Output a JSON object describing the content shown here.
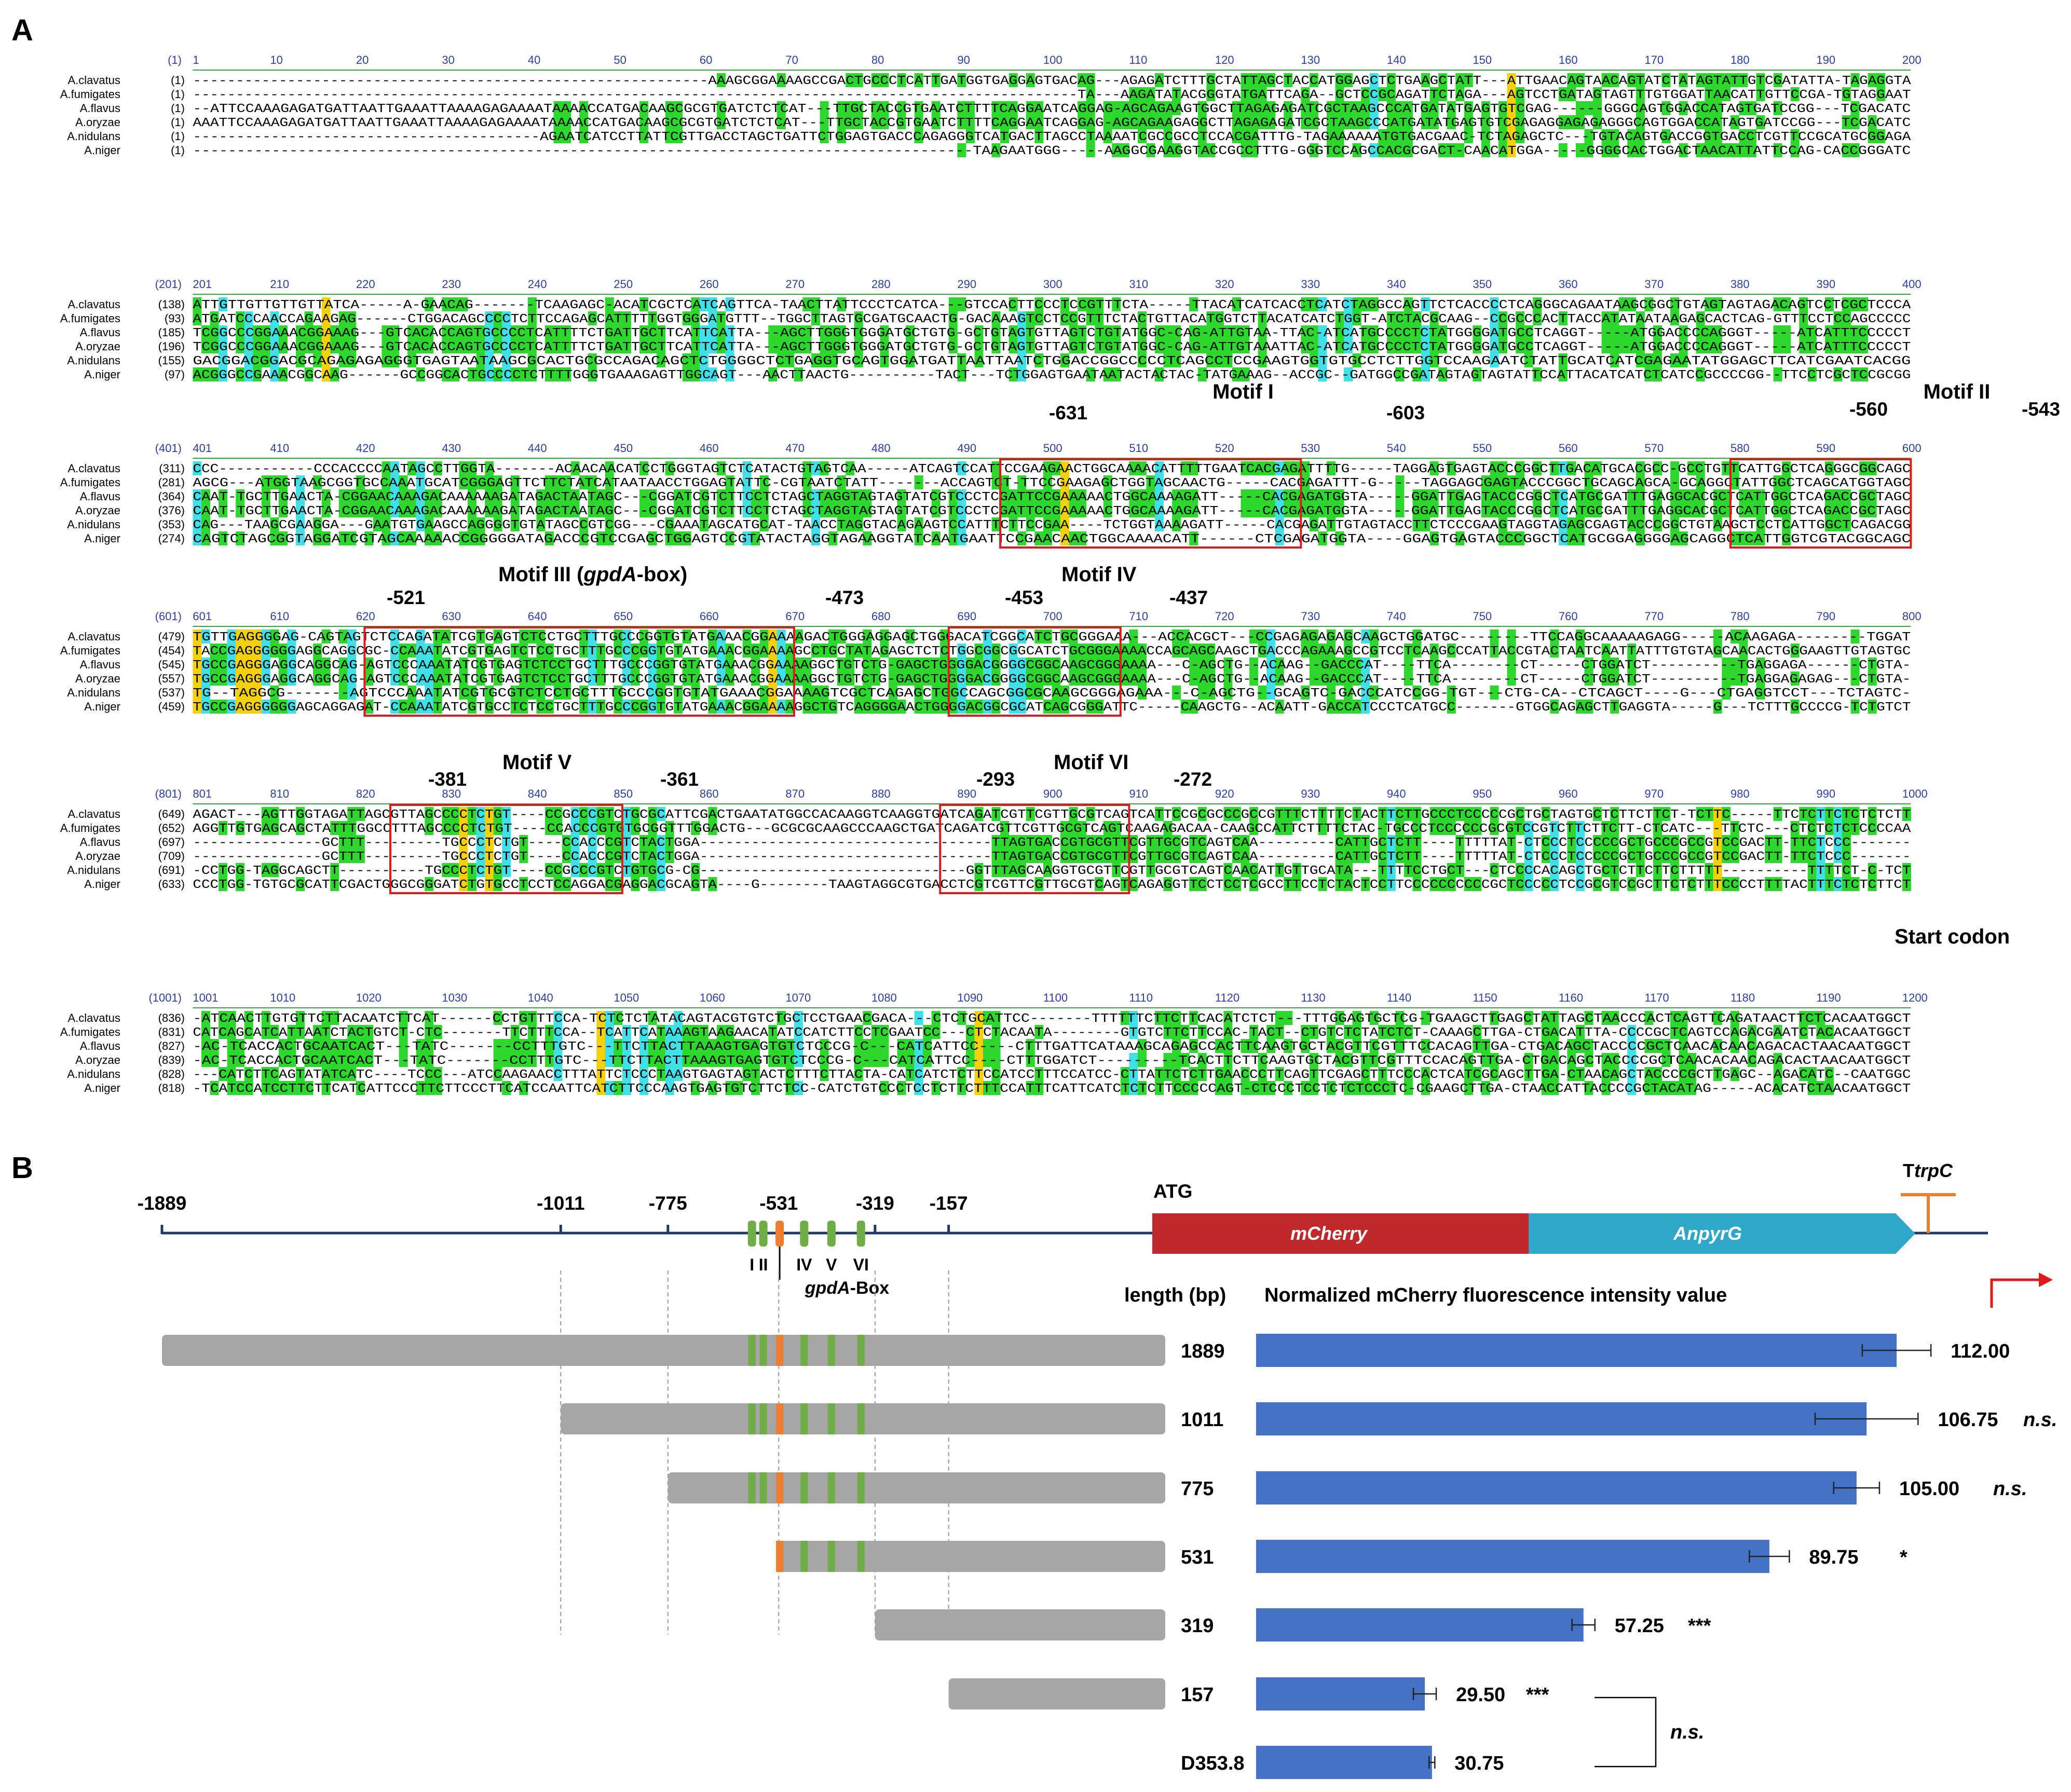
{
  "panel_a": {
    "label": "A",
    "species": [
      "A.clavatus",
      "A.fumigates",
      "A.flavus",
      "A.oryzae",
      "A.nidulans",
      "A.niger"
    ],
    "blocks": [
      {
        "pos": "(1)",
        "starts": [
          "(1)",
          "(1)",
          "(1)",
          "(1)",
          "(1)",
          "(1)"
        ],
        "ticks": [
          "1",
          "10",
          "20",
          "30",
          "40",
          "50",
          "60",
          "70",
          "80",
          "90",
          "100",
          "110",
          "120",
          "130",
          "140",
          "150",
          "160",
          "170",
          "180",
          "190",
          "200"
        ],
        "seqs": [
          "------------------------------------------------------------AAAGCGGAAAAGCCGACTGCCCTCATTGATGGTGAGGAGTGACAG---AGAGATCTTTGCTATTAGCTACCATGGAGCTCTGAAGCTATT---ATTGAACAGTAACAGTATCTATAGTATTGTCGATATTA-TAGAGGTATC",
          "-------------------------------------------------------------------------------------------------------TA---AAGATATACGGGTATGATTCAGA--GCTCCGCAGATTCTAGA---AGTCCTGATAGTAGTTTGTGGATTAACATTGTTCCGA-TGTAGGAATC",
          "--ATTCCAAAGAGATGATTAATTGAAATTAAAAGAGAAAATAAAACCATGACAAGCGCGTGATCTCTCAT---TTGCTACCGTGAATCTTTTCAGGAATCAGGAG-AGCAGAAGTGGCTTAGAGAGATCGCTAAGCCCATGATATGAGTGTCGAG------GGGCAGTGGACCATAGTGATCCGG---TCGACATC",
          "AAATTCCAAAGAGATGATTAATTGAAATTAAAAGAGAAAATAAAACCATGACAAGCGCGTGATCTCTCAT---TTGCTACCGTGAATCTTTTCAGGAATCAGGAG-AGCAGAAGAGGCTTAGAGAGATCGCTAAGCCCATGATATGAGTGTCGAGAGGAGAGAGGGCAGTGGACCATAGTGATCCGG---TCGACATC",
          "----------------------------------------AGAATCATCCTTATTCGTTGACCTAGCTGATTCTGGAGTGACCCAGAGGGTCATGACTTAGCCTAAAATCGCCGCCTCCACGATTTG-TAGAAAAAATGTGACGAAC-TCTAGAGCTC---TGTACAGTGACCGGTGACCTCGTTCCGCATGCGGAGA",
          "-----------------------------------------------------------------------------------------TAAGAATGGG-----AAGGCGAAGGTACCGCCTTTG-GGGTCCAGCCACGCGACT-CAACATGGA-----GGGGCACTGGACTAACATTATTCCAG-CACCGGGATC"
        ]
      },
      {
        "pos": "(201)",
        "starts": [
          "(138)",
          "(93)",
          "(185)",
          "(196)",
          "(155)",
          "(97)"
        ],
        "ticks": [
          "201",
          "210",
          "220",
          "230",
          "240",
          "250",
          "260",
          "270",
          "280",
          "290",
          "300",
          "310",
          "320",
          "330",
          "340",
          "350",
          "360",
          "370",
          "380",
          "390",
          "400"
        ],
        "seqs": [
          "ATTGTTGTTGTTGTTATCA-----A-GAACAG-------TCAAGAGC-ACATCGCTCATCAGTTCA-TAACTTATTCCCTCATCA---GTCCACTTCCCTCCGTTTCTA-----TTACATCATCACCTCATCTAGGCCAGTTCTCACCCCTCAGGGCAGAATAAGCGGCTGTAGTAGTAGACAGTCCTCGCTCCCA",
          "ATGATCCCAACCAGAAGAG------CTGGACAGCCCCTCTTCCAGAGCATTTTTGGTGGGATGTTT--TGGCTTAGTGCGATGCAACTG-GACAAAGTCCTCCGTTTCTACTGTTACATGGTCTTACATCATCTGGT-ATCTACGCAAG--CCGCCCACTTACCATATAATAAGAGCACTCAG-GTTTCCTCCAGCCCCCCA",
          "TCGGCCCGGAAACGGAAAG---GTCACACCAGTGCCCCTCATTTTCTGATTGCTTCATTCATTA---AGCTTGGGTGGGATGCTGTG-GCTGTAGTGTTAGTCTGTATGGC-CAG-ATTGTAA-TTAC-ATCATGCCCCTCTATGGGGATGCCTCAGGT-----ATGGACCCCAGGGT-----ATCATTTCCCCCT",
          "TCGGCCCGGAAACGGAAAG---GTCACACCAGTGCCCCTCATTTTCTGATTGCTTCATTCATTA---AGCTTGGGTGGGATGCTGTG-GCTGTAGTGTTAGTCTGTATGGC-CAG-ATTGTAAATTAC-ATCATGCCCCTCTATGGGGATGCCTCAGGT-----ATGGACCCCAGGGT-----ATCATTTCCCCCT",
          "GACGGACGGACGCAGAGAGAGGGTGAGTAATAAGCGCACTGCGCCAGACAGCTCTGGGGCTCTGAGGTGCAGTGGATGATTAATTAATCTGGACCGGCCCCCTCAGCCTCCGAAGTGGTGTGCCTCTTGGTCCAAGAATCTATTGCATCATCGAGAATATGGAGCTTCATCGAATCACGG",
          "ACGGGCCGAAACGGCAAG------GCCGGCACTGCCCCTCTTTTGGGTGAAAGAGTTGGCAGT---AACTTAACTG----------TACT---TCTGGAGTGAATAATACTACTAC-TATGAAAG--ACCGC--GATGGCCGATAGTAGTAGTATTCCATTACATCATCTCATCCGCCCCGG--TTCCTCGCTCCGCGG"
        ]
      },
      {
        "pos": "(401)",
        "starts": [
          "(311)",
          "(281)",
          "(364)",
          "(376)",
          "(353)",
          "(274)"
        ],
        "ticks": [
          "401",
          "410",
          "420",
          "430",
          "440",
          "450",
          "460",
          "470",
          "480",
          "490",
          "500",
          "510",
          "520",
          "530",
          "540",
          "550",
          "560",
          "570",
          "580",
          "590",
          "600"
        ],
        "seqs": [
          "CCC-----------CCCACCCCAATAGCCTTGGTA-------ACAACAACATCCTGGGTAGTCTCATACTGTAGTCAA-----ATCAGTCCATTCCGAAGAACTGGCAAAACATTTTTGAATCACGAGATTTTG-----TAGGAGTGAGTACCCGGCTTGACATGCACGCC-GCCTGTTCATTGGCTCAGGGCGGCAGC",
          "AGCG---ATGGTAAGCGGTGCCAAATGCATCGGGAGTTCTTCTATCATAATAACCTGGAGTATTC-CGTAATCTATT-------ACCAGTCT-TTCCGAAGAGCTGGTAGCAACTG-----CACGAGATTT-G-----TAGGAGCGAGTACCCGGCTGCAGCAGCA-GCAGGCTATTGGCTCAGCATGGTAGC",
          "CAAT-TGCTTGAACTA-CGGAACAAAGACAAAAAAGATAGACTAATAGC---CGGATCGTCTTCCTCTAGCTAGGTAGTAGTATCGTCCCTCGATTCCGAAAAACTGGCAAAAGATT-----CACGAGATGGTA-----GGATTGAGTACCCGGCTCATGCGATTTGAGGCACGCTCATTGGCTCAGACCGCTAGC",
          "CAAT-TGCTTGAACTA-CGGAACAAAGACAAAAAAGATAGACTAATAGC---CGGATCGTCTTCCTCTAGCTAGGTAGTAGTATCGTCCCTCGATTCCGAAAAACTGGCAAAAGATT-----CACGAGATGGTA-----GGATTGAGTACCCGGCTCATGCGATTTGAGGCACGCTCATTGGCTCAGACCGCTAGC",
          "CAG---TAAGCGAAGGA---GAATGTGAAGCCAGGGGTGTATAGCCGTCGG---CGAAATAGCATGCAT-TAACCTAGGTACAGAAGTCCATTTCTTCCGAA----TCTGGTAAAAGATT-----CACGAGATTGTAGTACCTTCTCCCGAAGTAGGTAGAGCGAGTACCCGGCTGTAAGCTCCTCATTGGCTCAGACGGCTAGC",
          "CAGTCTAGCGGTAGGATCGTAGCAAAAACCGGGGGATAGACCCGTCCGAGCTGGAGTCCGTATACTAGGTAGAAGGTATCAATGAATTCCGAACAACTGGCAAAACATT------CTCGAGATGGTA----GGAGTGAGTACCCGGCTCATGCGGAGGGGAGCAGGCTCATTGGTCGTACGGCAGC"
        ]
      },
      {
        "pos": "(601)",
        "starts": [
          "(479)",
          "(454)",
          "(545)",
          "(557)",
          "(537)",
          "(459)"
        ],
        "ticks": [
          "601",
          "610",
          "620",
          "630",
          "640",
          "650",
          "660",
          "670",
          "680",
          "690",
          "700",
          "710",
          "720",
          "730",
          "740",
          "750",
          "760",
          "770",
          "780",
          "790",
          "800"
        ],
        "seqs": [
          "TGTTGAGGGGAG-CAGTAGTCTCCAGATATCGTGAGTCTCCTGCTTTGCCCGGTGTATGAAACGGAAAAGACTGGGAGGAGCTGGGACATCGGCATCTGCGGGAAA---ACCACGCT---CCGAGAGAGAGCAAGCTGGATGC--------TTCCAGGCAAAAAGAGG-----ACAAGAGA--------TGGAT",
          "TACCGAGGGGGGAGGCAGGCGC-CCAAATATCGTGAGTCTCCTGCTTTGCCCGGTGTATGAAACGGAAAAGCCTGCTATAGAGCTCTCTGGCGGCGGCATCTGCGGGAAAACCAGCAGCAAGCTGACCCAGAAAGCCGTCCTCAAGCCCATTACCGTACTAATCAATTATTTGTGTAGCAACACTGGGAAGTTGTAGTGCAT",
          "TGCCGAGGGAGGCAGGCAG-AGTCCCAAATATCGTGAGTCTCCTGCTTTGCCCGGTGTATGAAACGGAAAAGGCTGTCTG-GAGCTGGGGACGGGGCGGCAAGCGGGAAAA---C-AGCTG--ACAAG--GACCCAT----TTCA--------CT-----CTGGATCT----------TGAGGAGA------CTGTA-",
          "TGCCGAGGGAGGCAGGCAG-AGTCCCAAATATCGTGAGTCTCCTGCTTTGCCCGGTGTATGAAACGGAAAAGGCTGTCTG-GAGCTGGGGACGGGGCGGCAAGCGGGAAAA---C-AGCTG--ACAAG--GACCCAT----TTCA--------CT-----CTGGATCT----------TGAGGAGAGAG---CTGTA-",
          "TG--TAGGCG-------AGTCCCAAATATCGTGCGTCTCCTGCTTTGCCCGGTGTATGAAACGGAAAAGTCGCTCAGAGCTGGCCAGCGGCGCAAGCGGGAGAAA---C-AGCTG--GCAGTC-GACCCATCCGG-TGT---CTG-CA--CTCAGCT----G---CTGAGGTCCT---TCTAGTC-",
          "TGCCGAGGGGGGAGCAGGAGAT-CCAAATATCGTGCCTCTCCTGCTTTGCCCGGTGTATGAAACGGAAAAGGCTGTCAGGGGAACTGGGGACGGCGCATCAGCGGGATTC-----CAAGCTG--ACAATT-GACCATCCCTCATGCC-------GTGGCAGAGCTTGAGGTA-----G---TCTTTGCCCCG-TCTGTCT"
        ]
      },
      {
        "pos": "(801)",
        "starts": [
          "(649)",
          "(652)",
          "(697)",
          "(709)",
          "(691)",
          "(633)"
        ],
        "ticks": [
          "801",
          "810",
          "820",
          "830",
          "840",
          "850",
          "860",
          "870",
          "880",
          "890",
          "900",
          "910",
          "920",
          "930",
          "940",
          "950",
          "960",
          "970",
          "980",
          "990",
          "1000"
        ],
        "seqs": [
          "AGACT---AGTTGGTAGATTAGCGTTAGCCCCTCTGT----CCGCCCGTCTGCGCATTCGACTGAATATGGCCACAAGGTCAAGGTGATCAGATCGTTCGTTGCGTCAGTCATTCCGCGCCCGCCGTTTCTTTTCTACTTCTTGCCCTCCCCCGCTGCTAGTGCTCTTCTTCT-TCTTC-----TTCTCTTCTCTCTCTTCCCAA",
          "AGGTTGTGAGCAGCTATTTGGCCTTTAGCCCCTCTGT----CCACCCGTGTGCGGTTTGGACTG---GCGCGCAAGCCCAAGCTGATCAGATCGTTCGTTGCGTCAGTCAAGAGACAA-CAAGCCATTCTTTTCTAC-TGCCCTCCCCCCGCGTCCGTCTTCTTCTT-CTCATC---TTCTC---CTCTCTCTCCCCAA",
          "---------------GCTTT---------TGCCCTCTGT----CCACCCGTCTACTGGA----------------------------------TTAGTGACCGTGCGTTCGTTGCGTCAGTCAA---------CATTGCTCTT----TTTTTAT-CTCCCTCCCCCGCTGCCCGCCGTCCGACTT-TTCTCCC--------TTTCTA-CTCTCTTCTGTAT",
          "---------------GCTTT---------TGCCCTCTGT----CCACCCGTCTACTGGA----------------------------------TTAGTGACCGTGCGTTCGTTGCGTCAGTCAA---------CATTGCTCTT----TTTTTAT-CTCCCTCCCCCGCTGCCCGCCGTCCGACTT-TTCTCCC--------TTTCTA-CTCTCTTCTGTAT",
          "-CCTGG-TAGGCAGCTT----------TGCCCTCTGT----CCGCCCGTCTGTGCG-CG-------------------------------GGTTTAGCAAGGTGCGTTCGTTGCGTCAGTCAACATTGTTGCATA---TTTTCCTGCT---CTCCCCACAGCTGCTCTTCTTCTTTTT----------TTTTCT-C-TCTCTTTTC--",
          "CCCTGG-TGTGCGCATTCGACTGGGCGGGATCTGTGCCTCCTCCAGGACGAGGACGCAGTA----G--------TAAGTAGGCGTGACCTCGTCGTTCGTTGCGTCAGTCAGAGGTTCCTCCTCGCCTTCCTCTACTCCTTCCCCCCCCCCGCTCCCCCTCCGCGTCCGCTTCTCTTTCCCCTTTTACTTTCTCTCTTCTCTCTCTTCT"
        ]
      },
      {
        "pos": "(1001)",
        "starts": [
          "(836)",
          "(831)",
          "(827)",
          "(839)",
          "(828)",
          "(818)"
        ],
        "ticks": [
          "1001",
          "1010",
          "1020",
          "1030",
          "1040",
          "1050",
          "1060",
          "1070",
          "1080",
          "1090",
          "1100",
          "1110",
          "1120",
          "1130",
          "1140",
          "1150",
          "1160",
          "1170",
          "1180",
          "1190",
          "1200"
        ],
        "seqs": [
          "-ATCAACTTGTGTTCTTACAATCTTCAT------CCTGTTTCCA-TCTCTCTATACAGTACGTGTCTGCTCCTGAACGACA---CTCTGCATTCC-------TTTTTTCTTCTTCACATCTCT---TTTGGAGTGCTCG-TGAAGCTTGAGCTATTAGCTAACCCACTCAGTTCAGATAACTTCTCACAATGGCT",
          "CATCAGCATCATTAATCTACTGTCT-CTC-------TTCTTTCCA--TCATTCATAAAGTAAGAACATATCCATCTTCCTCGAATCC---CTCTACAATA--------GTGTCTTCTTCCAC-TACT--CTGTCTCTATCTCT-CAAAGCTTGA-CTGACATTTA-CCCCGCTCAGTCCAGACGAATCTACACAATGGCT",
          "-AC-TCACCACTGCAATCACT---TATC-------CCTTTGTC---TTCTTACTTAAAGTGAGTGTCTCCCG-C---CATCATTCC----CTTTGATTCATAAAGCAGAGCCACTTCAAGTGCTACGTTCGTTTCCACAGTTGA-CTGACAGCTACCCCGCTCAACACAACAGACACTAACAATGGCT",
          "-AC-TCACCACTGCAATCACT---TATC-------CCTTTGTC---TTCTTACTTAAAGTGAGTGTCTCCCG-C---CATCATTCC----CTTTGGATCT---------TCACTTCTTCAAGTGCTACGTTCGTTTCCACAGTTGA-CTGACAGCTACCCCGCTCAACACAACAGACACTAACAATGGCT",
          "---CATCTTCAGTATATCATC----TCCC---ATCCAAGAACCTTTATTCTCCCTAAGTGAGTAGTACTCTTTCTTACTA-CATCATCTCTTCCATCCTTTCCATCC-CTTATTCTCTTGAACCCTTCAGTTCGAGCTTTCCCACTCATCGCAGCTTGA-CTAACAGCTACCCCGCTTGAGC--AGACATC--CAATGGCT",
          "-TCATCCATCCTTCTTCATCATTCCCTTCTTCCCTTCATCCAATTCATCTTCCCAAGTGAGTGTCTTCTCC-CATCTGTCCCTCCTCTTCTTTCCATTTCATTCATCTCTCTTCCCCCAGT-CTCCCTCCTCTCTCCCTC-CGAAGCTTGA-CTAACCATTACCCCGCTACATAG-----ACACATCTAACAATGGCT"
        ]
      }
    ],
    "annotations": [
      {
        "text": "Motif I"
      },
      {
        "text": "Motif II"
      },
      {
        "text": "Motif III (gpdA-box)",
        "italic_part": "gpdA"
      },
      {
        "text": "Motif IV"
      },
      {
        "text": "Motif V"
      },
      {
        "text": "Motif VI"
      },
      {
        "text": "Start codon"
      }
    ],
    "box_numbers": {
      "m4_left": "-631",
      "m4_right": "-603",
      "m2_left": "-560",
      "m2_right": "-543",
      "m3_left": "-521",
      "m3_right": "-473",
      "m5_left": "-453",
      "m5_right": "-437",
      "m6_left": "-381",
      "m6_right": "-361",
      "m7_left": "-293",
      "m7_right": "-272"
    },
    "colors": {
      "cyan": "#3fe0e8",
      "yellow": "#f5d10c",
      "green": "#2bd82b",
      "box": "#e0191b",
      "tick": "#2c3fa2",
      "arrow": "#e0191b"
    }
  },
  "panel_b": {
    "label": "B",
    "map": {
      "positions": [
        "-1889",
        "-1011",
        "-775",
        "-531",
        "-319",
        "-157"
      ],
      "atg": "ATG",
      "genes": [
        {
          "name": "mCherry",
          "color": "#c0282b"
        },
        {
          "name": "AnpyrG",
          "color": "#2ea7c9"
        }
      ],
      "terminator_prefix": "T",
      "terminator_italic": "trpC",
      "motif_labels": [
        "I",
        "II",
        "IV",
        "V",
        "VI"
      ],
      "gpda_label_italic": "gpdA",
      "gpda_label_suffix": "-Box"
    },
    "length_header": "length (bp)",
    "fluor_header": "Normalized mCherry fluorescence intensity value",
    "chart_data": {
      "type": "bar",
      "orientation": "horizontal",
      "title": "Normalized mCherry fluorescence intensity value",
      "categories": [
        "1889",
        "1011",
        "775",
        "531",
        "319",
        "157",
        "D353.8"
      ],
      "values": [
        112.0,
        106.75,
        105.0,
        89.75,
        57.25,
        29.5,
        30.75
      ],
      "errors": [
        6.0,
        9.0,
        4.0,
        3.5,
        2.0,
        2.0,
        0.5
      ],
      "value_labels": [
        "112.00",
        "106.75",
        "105.00",
        "89.75",
        "57.25",
        "29.50",
        "30.75"
      ],
      "significance": [
        "",
        "n.s.",
        "n.s.",
        "*",
        "***",
        "***",
        ""
      ],
      "bracket_label": "n.s.",
      "xlim": [
        0,
        120
      ],
      "bar_color": "#4472c4",
      "grid": false
    },
    "constructs": [
      {
        "length": "1889",
        "start": -1889
      },
      {
        "length": "1011",
        "start": -1011
      },
      {
        "length": "775",
        "start": -775
      },
      {
        "length": "531",
        "start": -531
      },
      {
        "length": "319",
        "start": -319
      },
      {
        "length": "157",
        "start": -157
      }
    ],
    "colors": {
      "construct": "#a6a6a6",
      "motif": "#70ad47",
      "gpda": "#ed7d31",
      "line": "#1f3864",
      "terminator": "#ed7d31"
    }
  }
}
